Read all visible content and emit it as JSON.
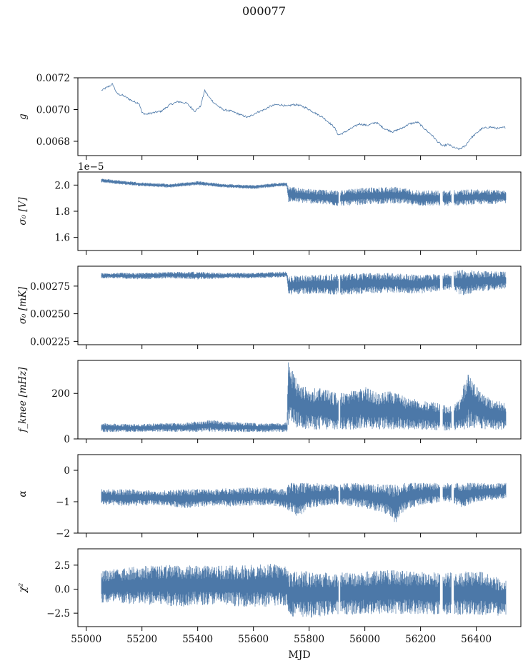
{
  "figure": {
    "title": "000077",
    "xlabel": "MJD",
    "series_color": "#4c78a8"
  },
  "chart_data": [
    {
      "type": "line",
      "ylabel": "g",
      "xlim": [
        54970,
        56560
      ],
      "ylim": [
        0.00671,
        0.0072
      ],
      "yticks": [
        "0.0068",
        "0.0070",
        "0.0072"
      ],
      "ytick_values": [
        0.0068,
        0.007,
        0.0072
      ],
      "x": [
        55055,
        55075,
        55095,
        55110,
        55130,
        55150,
        55170,
        55190,
        55200,
        55215,
        55240,
        55270,
        55300,
        55330,
        55360,
        55390,
        55410,
        55425,
        55440,
        55460,
        55490,
        55520,
        55550,
        55580,
        55610,
        55640,
        55660,
        55680,
        55700,
        55720,
        55740,
        55760,
        55790,
        55820,
        55850,
        55870,
        55890,
        55905,
        55920,
        55950,
        55980,
        56010,
        56040,
        56070,
        56100,
        56130,
        56160,
        56190,
        56220,
        56240,
        56260,
        56280,
        56300,
        56320,
        56340,
        56360,
        56380,
        56400,
        56420,
        56450,
        56480,
        56505
      ],
      "y": [
        0.00712,
        0.00714,
        0.00716,
        0.0071,
        0.00709,
        0.00707,
        0.00705,
        0.00704,
        0.00698,
        0.00697,
        0.00698,
        0.00699,
        0.00703,
        0.00705,
        0.00704,
        0.00699,
        0.00702,
        0.00712,
        0.00708,
        0.00704,
        0.007,
        0.00699,
        0.00697,
        0.00695,
        0.00698,
        0.007,
        0.00702,
        0.00703,
        0.00703,
        0.00702,
        0.00703,
        0.00703,
        0.00701,
        0.00698,
        0.00695,
        0.00692,
        0.00689,
        0.00684,
        0.00685,
        0.00688,
        0.00691,
        0.0069,
        0.00692,
        0.00688,
        0.00686,
        0.00688,
        0.00691,
        0.00692,
        0.00687,
        0.00684,
        0.0068,
        0.00677,
        0.00678,
        0.00676,
        0.00675,
        0.00677,
        0.00682,
        0.00685,
        0.00688,
        0.00689,
        0.00688,
        0.00689
      ],
      "noise": 6e-06
    },
    {
      "type": "area",
      "ylabel": "σ₀ [V]",
      "offset_text": "1e−5",
      "xlim": [
        54970,
        56560
      ],
      "ylim": [
        1.5,
        2.1
      ],
      "yticks": [
        "1.6",
        "1.8",
        "2.0"
      ],
      "ytick_values": [
        1.6,
        1.8,
        2.0
      ],
      "x": [
        55055,
        55100,
        55200,
        55300,
        55400,
        55500,
        55600,
        55700,
        55720,
        55725,
        55800,
        55900,
        56000,
        56100,
        56200,
        56300,
        56400,
        56505
      ],
      "low": [
        2.02,
        2.01,
        1.99,
        1.98,
        2.0,
        1.98,
        1.97,
        1.99,
        1.99,
        1.87,
        1.86,
        1.84,
        1.85,
        1.86,
        1.84,
        1.84,
        1.85,
        1.86
      ],
      "high": [
        2.05,
        2.04,
        2.02,
        2.01,
        2.03,
        2.01,
        2.0,
        2.02,
        2.02,
        1.99,
        1.97,
        1.96,
        1.98,
        1.99,
        1.96,
        1.96,
        1.97,
        1.96
      ],
      "gaps": [
        [
          55905,
          55912
        ],
        [
          56270,
          56280
        ],
        [
          56310,
          56320
        ]
      ]
    },
    {
      "type": "area",
      "ylabel": "σ₀ [mK]",
      "xlim": [
        54970,
        56560
      ],
      "ylim": [
        0.00222,
        0.00293
      ],
      "yticks": [
        "0.00225",
        "0.00250",
        "0.00275"
      ],
      "ytick_values": [
        0.00225,
        0.0025,
        0.00275
      ],
      "x": [
        55055,
        55100,
        55200,
        55300,
        55400,
        55500,
        55600,
        55700,
        55720,
        55725,
        55800,
        55900,
        56000,
        56100,
        56200,
        56300,
        56350,
        56400,
        56505
      ],
      "low": [
        0.00282,
        0.00282,
        0.00281,
        0.00282,
        0.00281,
        0.00282,
        0.00282,
        0.00283,
        0.00283,
        0.00267,
        0.00268,
        0.00267,
        0.00268,
        0.00269,
        0.00268,
        0.00272,
        0.00266,
        0.0027,
        0.00272
      ],
      "high": [
        0.00287,
        0.00287,
        0.00287,
        0.00288,
        0.00288,
        0.00287,
        0.00287,
        0.00288,
        0.00288,
        0.00284,
        0.00285,
        0.00286,
        0.00287,
        0.00287,
        0.00285,
        0.00287,
        0.0029,
        0.00289,
        0.00288
      ],
      "gaps": [
        [
          55905,
          55912
        ],
        [
          56270,
          56280
        ],
        [
          56310,
          56320
        ]
      ]
    },
    {
      "type": "area",
      "ylabel": "f_knee [mHz]",
      "xlim": [
        54970,
        56560
      ],
      "ylim": [
        0,
        345
      ],
      "yticks": [
        "0",
        "200"
      ],
      "ytick_values": [
        0,
        200
      ],
      "x": [
        55055,
        55150,
        55250,
        55350,
        55450,
        55550,
        55650,
        55720,
        55725,
        55760,
        55800,
        55850,
        55900,
        55950,
        56000,
        56050,
        56100,
        56150,
        56200,
        56250,
        56300,
        56340,
        56370,
        56400,
        56450,
        56505
      ],
      "low": [
        30,
        30,
        32,
        30,
        31,
        30,
        30,
        31,
        45,
        50,
        40,
        38,
        35,
        40,
        45,
        42,
        40,
        42,
        40,
        38,
        35,
        40,
        42,
        45,
        40,
        40
      ],
      "high": [
        70,
        65,
        68,
        70,
        85,
        72,
        68,
        72,
        345,
        250,
        220,
        230,
        200,
        210,
        230,
        200,
        215,
        180,
        175,
        160,
        150,
        170,
        300,
        230,
        180,
        160
      ],
      "gaps": [
        [
          55905,
          55912
        ],
        [
          56270,
          56280
        ],
        [
          56310,
          56320
        ]
      ]
    },
    {
      "type": "area",
      "ylabel": "α",
      "xlim": [
        54970,
        56560
      ],
      "ylim": [
        -2,
        0.5
      ],
      "yticks": [
        "−2",
        "−1",
        "0"
      ],
      "ytick_values": [
        -2,
        -1,
        0
      ],
      "x": [
        55055,
        55150,
        55250,
        55350,
        55450,
        55550,
        55650,
        55720,
        55725,
        55760,
        55800,
        55900,
        56000,
        56080,
        56110,
        56140,
        56200,
        56300,
        56350,
        56400,
        56505
      ],
      "low": [
        -1.1,
        -1.15,
        -1.1,
        -1.2,
        -1.15,
        -1.15,
        -1.1,
        -1.2,
        -1.3,
        -1.5,
        -1.2,
        -1.1,
        -1.2,
        -1.4,
        -1.7,
        -1.3,
        -1.1,
        -1.0,
        -1.2,
        -1.0,
        -0.9
      ],
      "high": [
        -0.6,
        -0.6,
        -0.65,
        -0.6,
        -0.6,
        -0.55,
        -0.55,
        -0.6,
        -0.4,
        -0.4,
        -0.4,
        -0.42,
        -0.4,
        -0.45,
        -0.45,
        -0.4,
        -0.4,
        -0.4,
        -0.4,
        -0.4,
        -0.4
      ],
      "gaps": [
        [
          55905,
          55912
        ],
        [
          56270,
          56280
        ],
        [
          56310,
          56320
        ]
      ]
    },
    {
      "type": "area",
      "ylabel": "χ²",
      "xlim": [
        54970,
        56560
      ],
      "ylim": [
        -3.9,
        4.2
      ],
      "yticks": [
        "−2.5",
        "0.0",
        "2.5"
      ],
      "ytick_values": [
        -2.5,
        0.0,
        2.5
      ],
      "x": [
        55055,
        55150,
        55250,
        55350,
        55450,
        55550,
        55650,
        55720,
        55725,
        55800,
        55900,
        56000,
        56100,
        56200,
        56300,
        56400,
        56505
      ],
      "low": [
        -1.5,
        -1.6,
        -1.7,
        -1.8,
        -1.6,
        -1.8,
        -1.9,
        -1.7,
        -2.8,
        -3.0,
        -2.6,
        -2.7,
        -2.6,
        -2.6,
        -2.7,
        -2.7,
        -2.8
      ],
      "high": [
        1.9,
        2.3,
        2.5,
        2.6,
        2.4,
        2.5,
        2.7,
        2.5,
        1.8,
        1.9,
        1.7,
        1.9,
        2.0,
        1.8,
        1.7,
        2.0,
        1.0
      ],
      "gaps": [
        [
          55905,
          55912
        ],
        [
          56270,
          56280
        ],
        [
          56310,
          56320
        ]
      ]
    }
  ],
  "xaxis": {
    "ticks": [
      "55000",
      "55200",
      "55400",
      "55600",
      "55800",
      "56000",
      "56200",
      "56400"
    ],
    "tick_values": [
      55000,
      55200,
      55400,
      55600,
      55800,
      56000,
      56200,
      56400
    ]
  }
}
